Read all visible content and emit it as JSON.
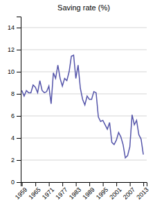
{
  "chart_data": {
    "type": "line",
    "title": "Saving rate (%)",
    "x": [
      1959,
      1960,
      1961,
      1962,
      1963,
      1964,
      1965,
      1966,
      1967,
      1968,
      1969,
      1970,
      1971,
      1972,
      1973,
      1974,
      1975,
      1976,
      1977,
      1978,
      1979,
      1980,
      1981,
      1982,
      1983,
      1984,
      1985,
      1986,
      1987,
      1988,
      1989,
      1990,
      1991,
      1992,
      1993,
      1994,
      1995,
      1996,
      1997,
      1998,
      1999,
      2000,
      2001,
      2002,
      2003,
      2004,
      2005,
      2006,
      2007,
      2008,
      2009,
      2010,
      2011,
      2012,
      2013
    ],
    "values": [
      8.3,
      7.8,
      8.3,
      8.1,
      8.1,
      8.8,
      8.6,
      8.1,
      9.2,
      8.3,
      8.1,
      8.2,
      8.7,
      7.1,
      9.9,
      9.4,
      10.6,
      9.4,
      8.7,
      9.4,
      9.2,
      10.0,
      11.4,
      11.5,
      9.4,
      10.6,
      8.5,
      7.5,
      7.0,
      7.8,
      7.5,
      7.5,
      8.2,
      8.1,
      5.9,
      5.5,
      5.6,
      5.2,
      4.8,
      5.4,
      3.6,
      3.4,
      3.8,
      4.5,
      4.1,
      3.4,
      2.2,
      2.4,
      3.2,
      6.1,
      5.2,
      5.6,
      4.3,
      3.9,
      2.5
    ],
    "color": "#5555aa",
    "xlim": [
      1958.5,
      2014.5
    ],
    "ylim": [
      0,
      15
    ],
    "xticks": [
      1959,
      1965,
      1971,
      1977,
      1983,
      1989,
      1995,
      2001,
      2007,
      2013
    ],
    "yticks": [
      0,
      2,
      4,
      6,
      8,
      10,
      12,
      14
    ],
    "grid": true
  }
}
